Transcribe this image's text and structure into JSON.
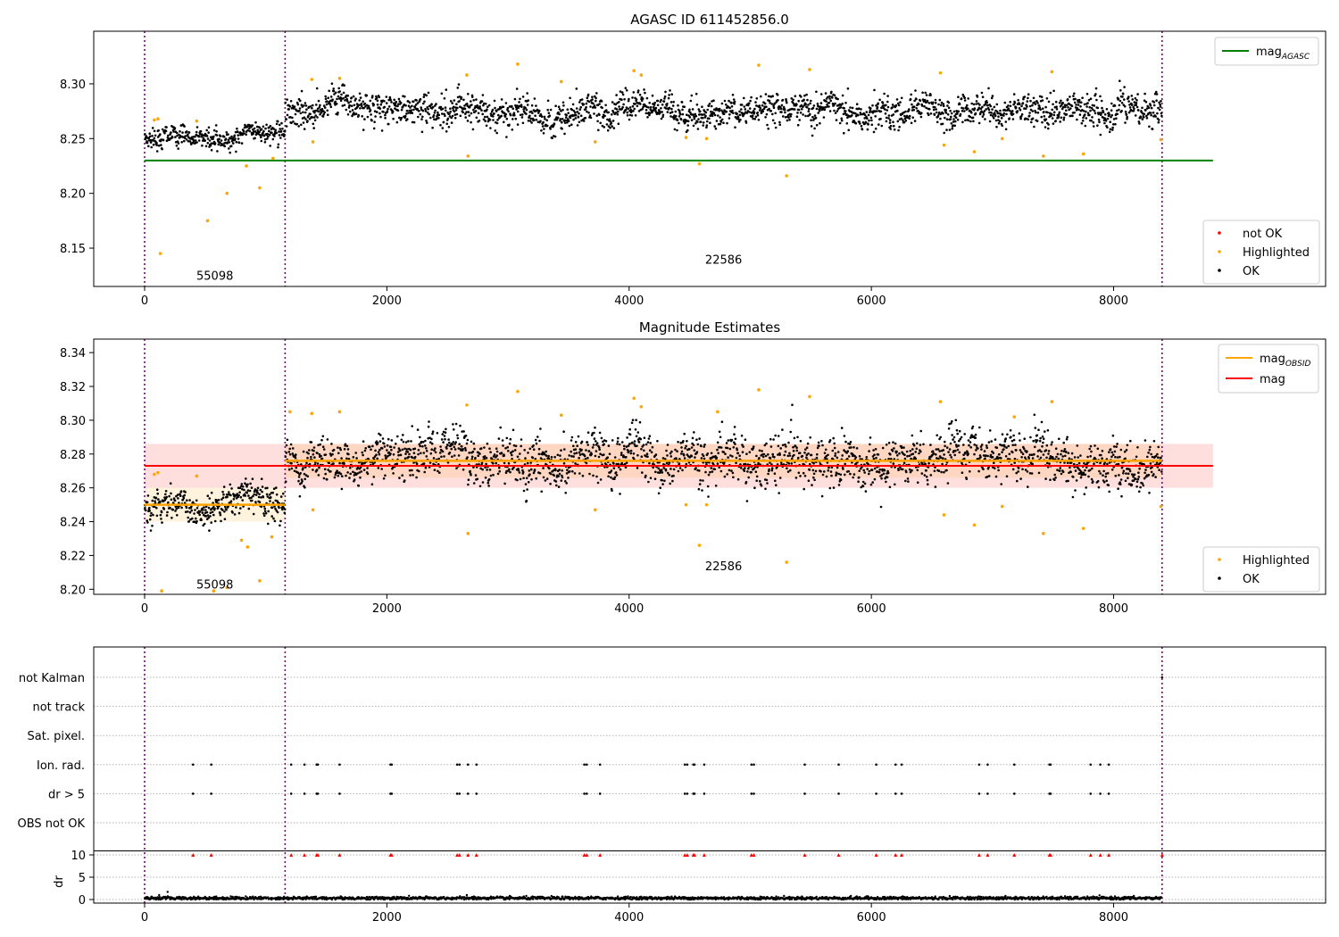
{
  "chart_data": [
    {
      "type": "scatter",
      "title": "AGASC ID 611452856.0",
      "xlim": [
        -420,
        9750
      ],
      "ylim": [
        8.115,
        8.348
      ],
      "xticks": [
        "0",
        "2000",
        "4000",
        "6000",
        "8000"
      ],
      "yticks": [
        "8.15",
        "8.20",
        "8.25",
        "8.30"
      ],
      "obsid_boundaries": [
        0,
        1160,
        8400
      ],
      "obsid_labels": [
        {
          "text": "55098",
          "x": 580,
          "y": 8.125
        },
        {
          "text": "22586",
          "x": 4780,
          "y": 8.14
        }
      ],
      "hline": {
        "name": "mag_AGASC",
        "value": 8.23,
        "x": [
          0,
          8820
        ],
        "color": "#008000"
      },
      "segments": [
        {
          "x": [
            0,
            1160
          ],
          "center": 8.25,
          "spread": 0.006
        },
        {
          "x": [
            1160,
            8400
          ],
          "center": 8.276,
          "spread": 0.009
        }
      ],
      "highlighted_points": [
        [
          80,
          8.267
        ],
        [
          110,
          8.268
        ],
        [
          130,
          8.145
        ],
        [
          430,
          8.266
        ],
        [
          520,
          8.175
        ],
        [
          680,
          8.2
        ],
        [
          840,
          8.225
        ],
        [
          950,
          8.205
        ],
        [
          1060,
          8.232
        ],
        [
          1380,
          8.304
        ],
        [
          1390,
          8.247
        ],
        [
          1610,
          8.305
        ],
        [
          2660,
          8.308
        ],
        [
          2670,
          8.234
        ],
        [
          3080,
          8.318
        ],
        [
          3440,
          8.302
        ],
        [
          3720,
          8.247
        ],
        [
          4040,
          8.312
        ],
        [
          4100,
          8.308
        ],
        [
          4470,
          8.251
        ],
        [
          4580,
          8.227
        ],
        [
          4640,
          8.25
        ],
        [
          5070,
          8.317
        ],
        [
          5300,
          8.216
        ],
        [
          5490,
          8.313
        ],
        [
          6570,
          8.31
        ],
        [
          6600,
          8.244
        ],
        [
          6850,
          8.238
        ],
        [
          7080,
          8.25
        ],
        [
          7420,
          8.234
        ],
        [
          7490,
          8.311
        ],
        [
          7750,
          8.236
        ],
        [
          8390,
          8.249
        ]
      ],
      "legend_upper": [
        {
          "label": "mag",
          "sub": "AGASC",
          "color": "#008000"
        }
      ],
      "legend_lower": [
        {
          "label": "not OK",
          "color": "#ff0000"
        },
        {
          "label": "Highlighted",
          "color": "#ffa500"
        },
        {
          "label": "OK",
          "color": "#000000"
        }
      ]
    },
    {
      "type": "scatter",
      "title": "Magnitude Estimates",
      "xlim": [
        -420,
        9750
      ],
      "ylim": [
        8.197,
        8.348
      ],
      "xticks": [
        "0",
        "2000",
        "4000",
        "6000",
        "8000"
      ],
      "yticks": [
        "8.20",
        "8.22",
        "8.24",
        "8.26",
        "8.28",
        "8.30",
        "8.32",
        "8.34"
      ],
      "obsid_boundaries": [
        0,
        1160,
        8400
      ],
      "obsid_labels": [
        {
          "text": "55098",
          "x": 580,
          "y": 8.203
        },
        {
          "text": "22586",
          "x": 4780,
          "y": 8.214
        }
      ],
      "mag": {
        "name": "mag",
        "value": 8.273,
        "band": [
          8.26,
          8.286
        ],
        "x": [
          0,
          8820
        ],
        "color": "#ff0000"
      },
      "mag_obsid": [
        {
          "x": [
            0,
            1160
          ],
          "value": 8.25
        },
        {
          "x": [
            1160,
            8400
          ],
          "value": 8.276
        }
      ],
      "segments": [
        {
          "x": [
            0,
            1160
          ],
          "center": 8.25,
          "spread": 0.006
        },
        {
          "x": [
            1160,
            8400
          ],
          "center": 8.276,
          "spread": 0.009
        }
      ],
      "highlighted_points": [
        [
          80,
          8.268
        ],
        [
          110,
          8.269
        ],
        [
          140,
          8.199
        ],
        [
          430,
          8.267
        ],
        [
          570,
          8.199
        ],
        [
          680,
          8.201
        ],
        [
          800,
          8.229
        ],
        [
          850,
          8.225
        ],
        [
          950,
          8.205
        ],
        [
          1050,
          8.231
        ],
        [
          1200,
          8.305
        ],
        [
          1380,
          8.304
        ],
        [
          1390,
          8.247
        ],
        [
          1610,
          8.305
        ],
        [
          2660,
          8.309
        ],
        [
          2670,
          8.233
        ],
        [
          3080,
          8.317
        ],
        [
          3440,
          8.303
        ],
        [
          3720,
          8.247
        ],
        [
          4040,
          8.313
        ],
        [
          4100,
          8.308
        ],
        [
          4470,
          8.25
        ],
        [
          4580,
          8.226
        ],
        [
          4640,
          8.25
        ],
        [
          4730,
          8.305
        ],
        [
          5070,
          8.318
        ],
        [
          5300,
          8.216
        ],
        [
          5490,
          8.314
        ],
        [
          6570,
          8.311
        ],
        [
          6600,
          8.244
        ],
        [
          6850,
          8.238
        ],
        [
          7080,
          8.249
        ],
        [
          7180,
          8.302
        ],
        [
          7420,
          8.233
        ],
        [
          7490,
          8.311
        ],
        [
          7750,
          8.236
        ],
        [
          8390,
          8.249
        ]
      ],
      "legend_upper": [
        {
          "label": "mag",
          "sub": "OBSID",
          "color": "#ffa500"
        },
        {
          "label": "mag",
          "sub": "",
          "color": "#ff0000"
        }
      ],
      "legend_lower": [
        {
          "label": "Highlighted",
          "color": "#ffa500"
        },
        {
          "label": "OK",
          "color": "#000000"
        }
      ]
    },
    {
      "type": "scatter",
      "title": "",
      "xlim": [
        -420,
        9750
      ],
      "xticks": [
        "0",
        "2000",
        "4000",
        "6000",
        "8000"
      ],
      "flag_rows": [
        "not Kalman",
        "not track",
        "Sat. pixel.",
        "Ion. rad.",
        "dr > 5",
        "OBS not OK"
      ],
      "flag_events": [
        {
          "row": "Ion. rad.",
          "x": [
            400,
            550,
            1210,
            1320,
            1420,
            1430,
            1610,
            2030,
            2040,
            2580,
            2600,
            2670,
            2740,
            3630,
            3650,
            3760,
            4460,
            4480,
            4530,
            4540,
            4620,
            5010,
            5030,
            5450,
            5730,
            6040,
            6200,
            6250,
            6890,
            6960,
            7180,
            7470,
            7480,
            7810,
            7890,
            7960
          ]
        },
        {
          "row": "dr > 5",
          "x": [
            400,
            550,
            1210,
            1320,
            1420,
            1430,
            1610,
            2030,
            2040,
            2580,
            2600,
            2670,
            2740,
            3630,
            3650,
            3760,
            4460,
            4480,
            4530,
            4540,
            4620,
            5010,
            5030,
            5450,
            5730,
            6040,
            6200,
            6250,
            6890,
            6960,
            7180,
            7470,
            7480,
            7810,
            7890,
            7960
          ]
        },
        {
          "row": "not Kalman",
          "x": [
            8400
          ]
        }
      ],
      "dr": {
        "ylabel": "dr",
        "yticks": [
          "0",
          "5",
          "10"
        ],
        "ylim": [
          -0.8,
          10.8
        ],
        "clip": 10,
        "typical": 0.3,
        "outliers": [
          [
            120,
            1.0
          ],
          [
            190,
            1.7
          ],
          [
            2660,
            1.0
          ]
        ]
      }
    }
  ]
}
